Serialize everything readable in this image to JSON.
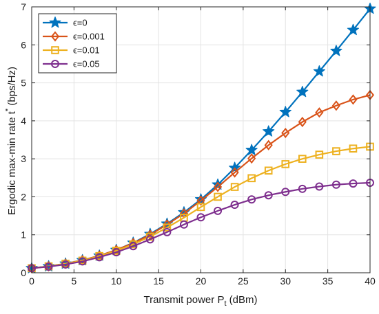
{
  "chart_data": {
    "type": "line",
    "title": "",
    "xlabel": "Transmit power P",
    "xlabel_sub": "t",
    "xlabel_unit": " (dBm)",
    "ylabel": "Ergodic max-min rate t",
    "ylabel_sup": "*",
    "ylabel_unit": " (bps/Hz)",
    "xlim": [
      0,
      40
    ],
    "ylim": [
      0,
      7
    ],
    "xticks": [
      0,
      5,
      10,
      15,
      20,
      25,
      30,
      35,
      40
    ],
    "yticks": [
      0,
      1,
      2,
      3,
      4,
      5,
      6,
      7
    ],
    "grid": true,
    "legend_position": "top-left",
    "x": [
      0,
      2,
      4,
      6,
      8,
      10,
      12,
      14,
      16,
      18,
      20,
      22,
      24,
      26,
      28,
      30,
      32,
      34,
      36,
      38,
      40
    ],
    "series": [
      {
        "name": "ϵ=0",
        "color": "#0072BD",
        "marker": "star",
        "values": [
          0.12,
          0.17,
          0.24,
          0.33,
          0.45,
          0.6,
          0.79,
          1.02,
          1.29,
          1.59,
          1.93,
          2.32,
          2.76,
          3.23,
          3.72,
          4.23,
          4.76,
          5.3,
          5.84,
          6.39,
          6.95
        ]
      },
      {
        "name": "ϵ=0.001",
        "color": "#D95319",
        "marker": "diamond",
        "values": [
          0.12,
          0.17,
          0.24,
          0.33,
          0.45,
          0.6,
          0.78,
          1.0,
          1.27,
          1.56,
          1.9,
          2.26,
          2.64,
          3.01,
          3.36,
          3.68,
          3.97,
          4.22,
          4.4,
          4.56,
          4.68
        ]
      },
      {
        "name": "ϵ=0.01",
        "color": "#EDB120",
        "marker": "square",
        "values": [
          0.12,
          0.17,
          0.24,
          0.32,
          0.44,
          0.58,
          0.75,
          0.95,
          1.19,
          1.45,
          1.73,
          2.0,
          2.26,
          2.49,
          2.69,
          2.86,
          3.0,
          3.11,
          3.2,
          3.27,
          3.32
        ]
      },
      {
        "name": "ϵ=0.05",
        "color": "#7E2F8E",
        "marker": "circle",
        "values": [
          0.12,
          0.16,
          0.22,
          0.3,
          0.41,
          0.54,
          0.7,
          0.88,
          1.07,
          1.27,
          1.46,
          1.63,
          1.79,
          1.93,
          2.04,
          2.13,
          2.21,
          2.27,
          2.32,
          2.35,
          2.37
        ]
      }
    ]
  }
}
